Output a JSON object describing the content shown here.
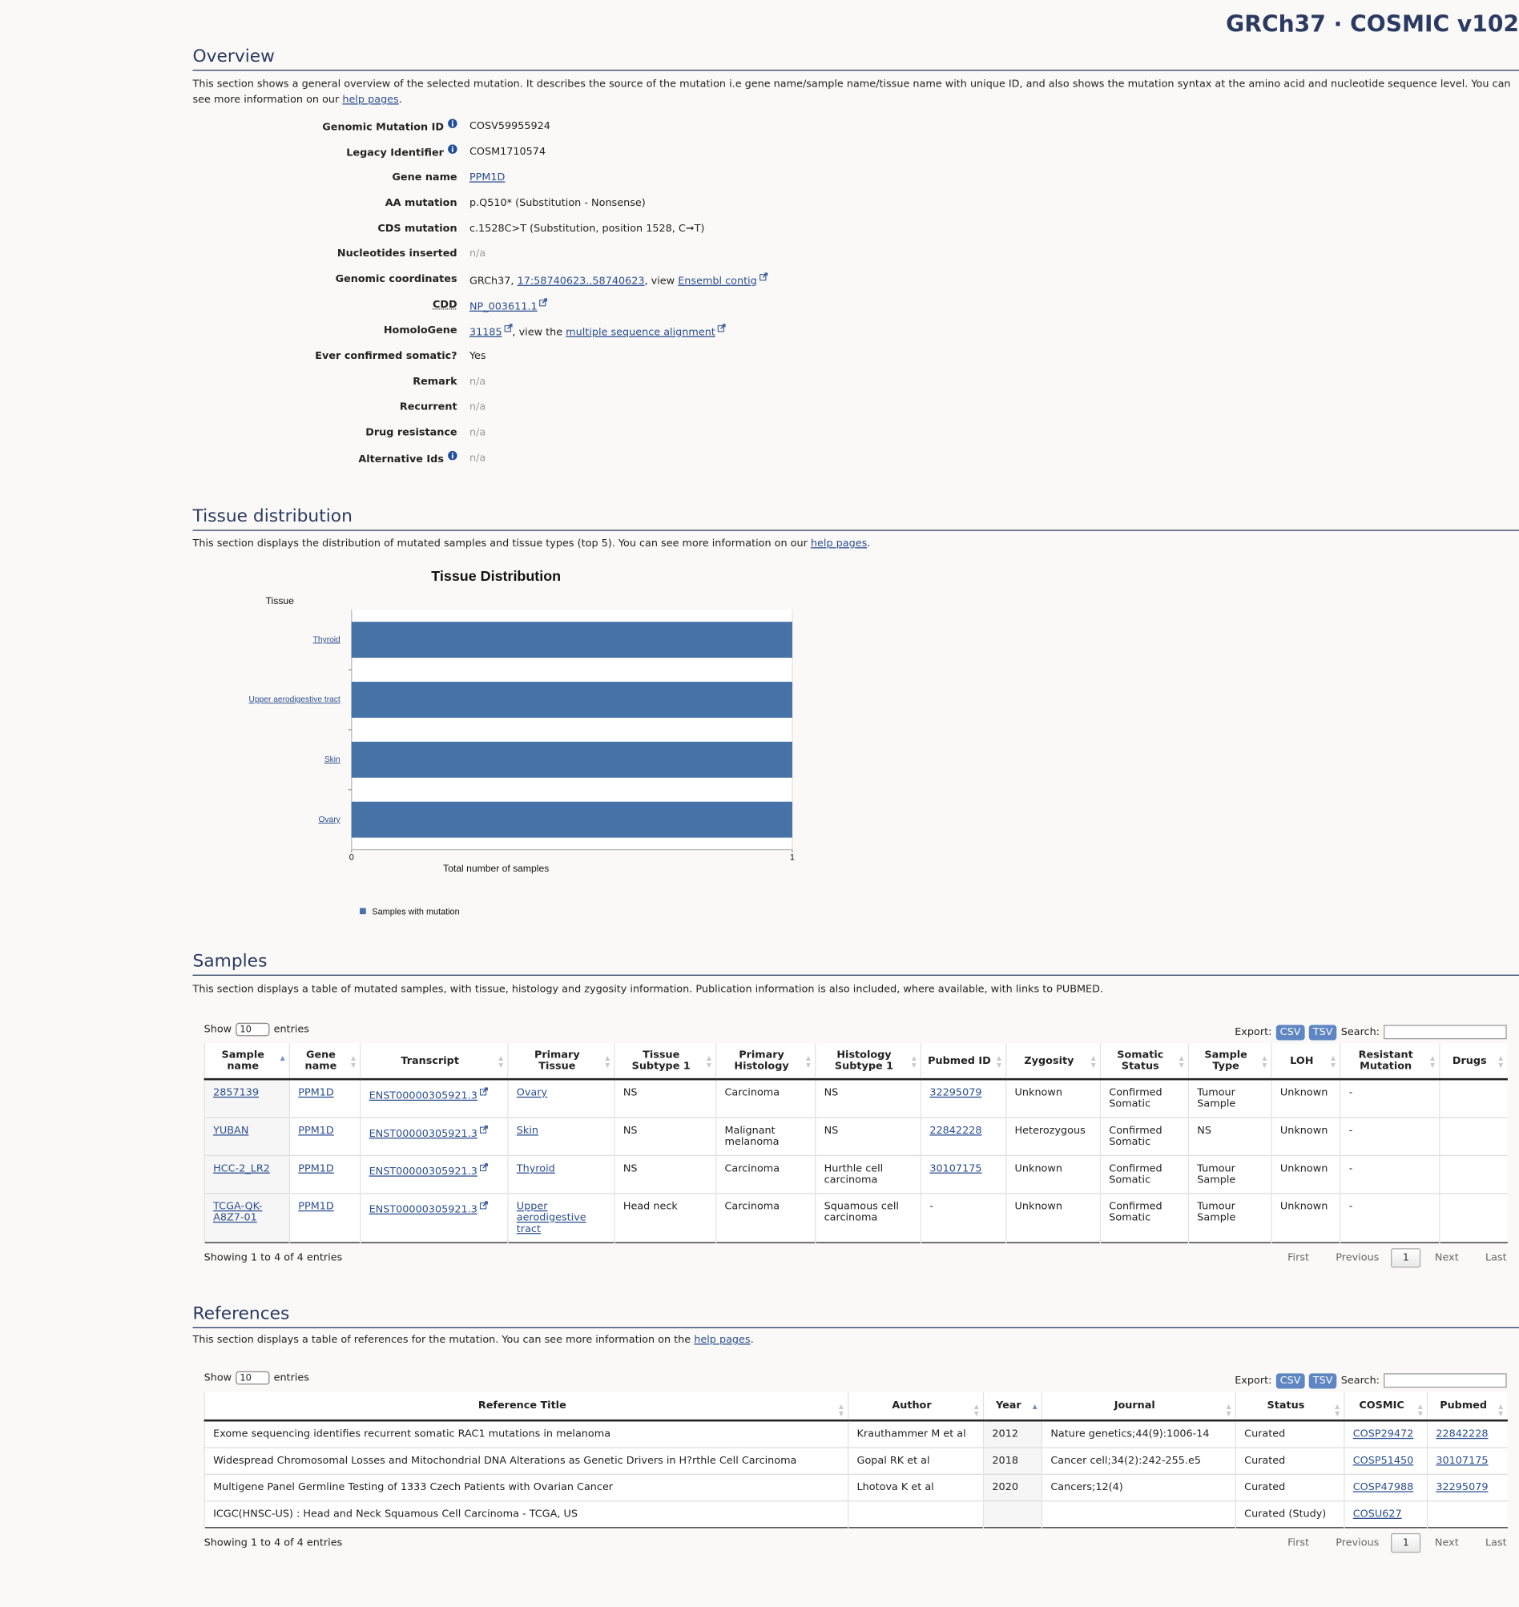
{
  "header": {
    "title": "GRCh37 · COSMIC v102"
  },
  "overview": {
    "heading": "Overview",
    "intro": [
      {
        "text": "This section shows a general overview of the selected mutation. It describes the source of the mutation i.e gene name/sample name/tissue name with unique ID, and also shows the mutation syntax at the amino acid and nucleotide sequence level. You can see more information on our "
      },
      {
        "text": "help pages",
        "link": true
      },
      {
        "text": "."
      }
    ],
    "fields": [
      {
        "label": "Genomic Mutation ID",
        "info": true,
        "value": [
          {
            "text": "COSV59955924"
          }
        ]
      },
      {
        "label": "Legacy Identifier",
        "info": true,
        "value": [
          {
            "text": "COSM1710574"
          }
        ]
      },
      {
        "label": "Gene name",
        "value": [
          {
            "text": "PPM1D",
            "link": true
          }
        ]
      },
      {
        "label": "AA mutation",
        "value": [
          {
            "text": "p.Q510* (Substitution - Nonsense)"
          }
        ]
      },
      {
        "label": "CDS mutation",
        "value": [
          {
            "text": "c.1528C>T (Substitution, position 1528, C➞T)"
          }
        ]
      },
      {
        "label": "Nucleotides inserted",
        "value": [
          {
            "text": "n/a",
            "muted": true
          }
        ]
      },
      {
        "label": "Genomic coordinates",
        "value": [
          {
            "text": "GRCh37, "
          },
          {
            "text": "17:58740623..58740623",
            "link": true
          },
          {
            "text": ", view "
          },
          {
            "text": "Ensembl contig",
            "link": true,
            "ext": true
          }
        ]
      },
      {
        "label": "CDD",
        "abbr": true,
        "value": [
          {
            "text": "NP_003611.1",
            "link": true,
            "ext": true
          }
        ]
      },
      {
        "label": "HomoloGene",
        "value": [
          {
            "text": "31185",
            "link": true,
            "ext": true
          },
          {
            "text": ", view the "
          },
          {
            "text": "multiple sequence alignment",
            "link": true,
            "ext": true
          }
        ]
      },
      {
        "label": "Ever confirmed somatic?",
        "value": [
          {
            "text": "Yes"
          }
        ]
      },
      {
        "label": "Remark",
        "value": [
          {
            "text": "n/a",
            "muted": true
          }
        ]
      },
      {
        "label": "Recurrent",
        "value": [
          {
            "text": "n/a",
            "muted": true
          }
        ]
      },
      {
        "label": "Drug resistance",
        "value": [
          {
            "text": "n/a",
            "muted": true
          }
        ]
      },
      {
        "label": "Alternative Ids",
        "info": true,
        "value": [
          {
            "text": "n/a",
            "muted": true
          }
        ]
      }
    ]
  },
  "tissue": {
    "heading": "Tissue distribution",
    "intro": [
      {
        "text": "This section displays the distribution of mutated samples and tissue types (top 5). You can see more information on our "
      },
      {
        "text": "help pages",
        "link": true
      },
      {
        "text": "."
      }
    ]
  },
  "chart_data": {
    "type": "bar",
    "orientation": "horizontal",
    "title": "Tissue Distribution",
    "y_label": "Tissue",
    "x_label": "Total number of samples",
    "categories": [
      "Thyroid",
      "Upper aerodigestive tract",
      "Skin",
      "Ovary"
    ],
    "category_links": true,
    "series": [
      {
        "name": "Samples with mutation",
        "color": "#4672a8",
        "values": [
          1,
          1,
          1,
          1
        ]
      }
    ],
    "xlim": [
      0,
      1
    ],
    "xticks": [
      0,
      1
    ],
    "grid": true,
    "legend": "bottom-left"
  },
  "samples": {
    "heading": "Samples",
    "intro": [
      {
        "text": "This section displays a table of mutated samples, with tissue, histology and zygosity information. Publication information is also included, where available, with links to PUBMED."
      }
    ],
    "controls": {
      "show": "Show",
      "length": "10",
      "entries": "entries",
      "export": "Export:",
      "csv": "CSV",
      "tsv": "TSV",
      "search": "Search:"
    },
    "columns": [
      "Sample name",
      "Gene name",
      "Transcript",
      "Primary Tissue",
      "Tissue Subtype 1",
      "Primary Histology",
      "Histology Subtype 1",
      "Pubmed ID",
      "Zygosity",
      "Somatic Status",
      "Sample Type",
      "LOH",
      "Resistant Mutation",
      "Drugs"
    ],
    "sorted_column": 0,
    "rows": [
      [
        {
          "text": "2857139",
          "link": true
        },
        {
          "text": "PPM1D",
          "link": true
        },
        {
          "text": "ENST00000305921.3",
          "link": true,
          "ext": true
        },
        {
          "text": "Ovary",
          "link": true
        },
        "NS",
        "Carcinoma",
        "NS",
        {
          "text": "32295079",
          "link": true
        },
        "Unknown",
        "Confirmed Somatic",
        "Tumour Sample",
        "Unknown",
        "-",
        null
      ],
      [
        {
          "text": "YUBAN",
          "link": true
        },
        {
          "text": "PPM1D",
          "link": true
        },
        {
          "text": "ENST00000305921.3",
          "link": true,
          "ext": true
        },
        {
          "text": "Skin",
          "link": true
        },
        "NS",
        "Malignant melanoma",
        "NS",
        {
          "text": "22842228",
          "link": true
        },
        "Heterozygous",
        "Confirmed Somatic",
        "NS",
        "Unknown",
        "-",
        null
      ],
      [
        {
          "text": "HCC-2_LR2",
          "link": true
        },
        {
          "text": "PPM1D",
          "link": true
        },
        {
          "text": "ENST00000305921.3",
          "link": true,
          "ext": true
        },
        {
          "text": "Thyroid",
          "link": true
        },
        "NS",
        "Carcinoma",
        "Hurthle cell carcinoma",
        {
          "text": "30107175",
          "link": true
        },
        "Unknown",
        "Confirmed Somatic",
        "Tumour Sample",
        "Unknown",
        "-",
        null
      ],
      [
        {
          "text": "TCGA-QK-A8Z7-01",
          "link": true
        },
        {
          "text": "PPM1D",
          "link": true
        },
        {
          "text": "ENST00000305921.3",
          "link": true,
          "ext": true
        },
        {
          "text": "Upper aerodigestive tract",
          "link": true
        },
        "Head neck",
        "Carcinoma",
        "Squamous cell carcinoma",
        "-",
        "Unknown",
        "Confirmed Somatic",
        "Tumour Sample",
        "Unknown",
        "-",
        null
      ]
    ],
    "info": "Showing 1 to 4 of 4 entries",
    "pager": {
      "first": "First",
      "previous": "Previous",
      "page": "1",
      "next": "Next",
      "last": "Last"
    }
  },
  "references": {
    "heading": "References",
    "intro": [
      {
        "text": "This section displays a table of references for the mutation. You can see more information on the "
      },
      {
        "text": "help pages",
        "link": true
      },
      {
        "text": "."
      }
    ],
    "controls": {
      "show": "Show",
      "length": "10",
      "entries": "entries",
      "export": "Export:",
      "csv": "CSV",
      "tsv": "TSV",
      "search": "Search:"
    },
    "columns": [
      "Reference Title",
      "Author",
      "Year",
      "Journal",
      "Status",
      "COSMIC",
      "Pubmed"
    ],
    "sorted_column": 2,
    "rows": [
      [
        "Exome sequencing identifies recurrent somatic RAC1 mutations in melanoma",
        "Krauthammer M et al",
        "2012",
        "Nature genetics;44(9):1006-14",
        "Curated",
        {
          "text": "COSP29472",
          "link": true
        },
        {
          "text": "22842228",
          "link": true
        }
      ],
      [
        "Widespread Chromosomal Losses and Mitochondrial DNA Alterations as Genetic Drivers in H?rthle Cell Carcinoma",
        "Gopal RK et al",
        "2018",
        "Cancer cell;34(2):242-255.e5",
        "Curated",
        {
          "text": "COSP51450",
          "link": true
        },
        {
          "text": "30107175",
          "link": true
        }
      ],
      [
        "Multigene Panel Germline Testing of 1333 Czech Patients with Ovarian Cancer",
        "Lhotova K et al",
        "2020",
        "Cancers;12(4)",
        "Curated",
        {
          "text": "COSP47988",
          "link": true
        },
        {
          "text": "32295079",
          "link": true
        }
      ],
      [
        "ICGC(HNSC-US) : Head and Neck Squamous Cell Carcinoma - TCGA, US",
        null,
        null,
        null,
        "Curated (Study)",
        {
          "text": "COSU627",
          "link": true
        },
        null
      ]
    ],
    "info": "Showing 1 to 4 of 4 entries",
    "pager": {
      "first": "First",
      "previous": "Previous",
      "page": "1",
      "next": "Next",
      "last": "Last"
    }
  }
}
